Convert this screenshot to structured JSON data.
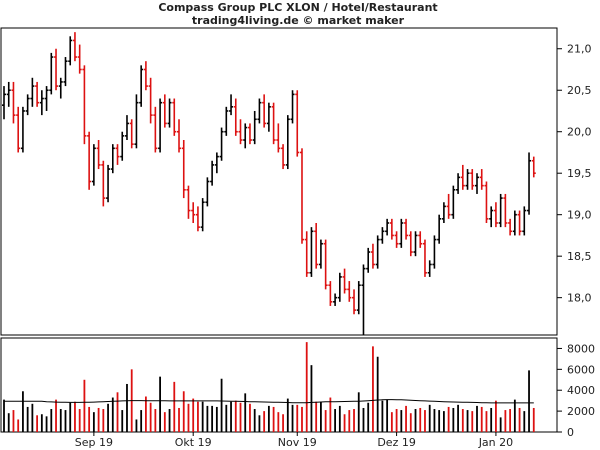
{
  "chart_data": {
    "title": "Compass Group PLC XLON / Hotel/Restaurant",
    "subtitle": "trading4living.de © market maker",
    "type": "ohlc",
    "colors": {
      "up": "#000000",
      "down": "#dd1111",
      "volume_avg": "#000000",
      "frame": "#000000"
    },
    "price_axis": {
      "ticks": [
        "18,0",
        "18,5",
        "19,0",
        "19,5",
        "20,0",
        "20,5",
        "21,0"
      ],
      "tick_values": [
        18.0,
        18.5,
        19.0,
        19.5,
        20.0,
        20.5,
        21.0
      ],
      "ylim": [
        17.55,
        21.25
      ]
    },
    "volume_axis": {
      "ticks": [
        "0",
        "2000",
        "4000",
        "6000",
        "8000"
      ],
      "tick_values": [
        0,
        2000,
        4000,
        6000,
        8000
      ],
      "ylim": [
        0,
        9000
      ]
    },
    "x_labels": [
      {
        "label": "Sep 19",
        "index": 19
      },
      {
        "label": "Okt 19",
        "index": 40
      },
      {
        "label": "Nov 19",
        "index": 62
      },
      {
        "label": "Dez 19",
        "index": 83
      },
      {
        "label": "Jan 20",
        "index": 104
      }
    ],
    "grid": false,
    "prices": [
      [
        20.32,
        20.55,
        20.15,
        20.45
      ],
      [
        20.45,
        20.6,
        20.3,
        20.5
      ],
      [
        20.5,
        20.6,
        20.1,
        20.2
      ],
      [
        20.2,
        20.3,
        19.75,
        19.8
      ],
      [
        19.8,
        20.3,
        19.75,
        20.25
      ],
      [
        20.25,
        20.45,
        20.2,
        20.4
      ],
      [
        20.4,
        20.65,
        20.3,
        20.55
      ],
      [
        20.55,
        20.6,
        20.3,
        20.35
      ],
      [
        20.35,
        20.5,
        20.2,
        20.4
      ],
      [
        20.4,
        20.55,
        20.25,
        20.5
      ],
      [
        20.5,
        20.95,
        20.45,
        20.9
      ],
      [
        20.9,
        21.0,
        20.5,
        20.55
      ],
      [
        20.55,
        20.65,
        20.4,
        20.6
      ],
      [
        20.6,
        20.9,
        20.55,
        20.85
      ],
      [
        20.85,
        21.15,
        20.8,
        21.1
      ],
      [
        21.1,
        21.2,
        20.85,
        20.9
      ],
      [
        20.9,
        21.05,
        20.7,
        20.75
      ],
      [
        20.75,
        20.8,
        19.85,
        19.95
      ],
      [
        19.95,
        20.0,
        19.3,
        19.4
      ],
      [
        19.4,
        19.85,
        19.35,
        19.8
      ],
      [
        19.8,
        19.9,
        19.55,
        19.6
      ],
      [
        19.6,
        19.65,
        19.1,
        19.2
      ],
      [
        19.2,
        19.6,
        19.15,
        19.55
      ],
      [
        19.55,
        19.85,
        19.5,
        19.8
      ],
      [
        19.8,
        19.85,
        19.6,
        19.7
      ],
      [
        19.7,
        20.0,
        19.65,
        19.95
      ],
      [
        19.95,
        20.2,
        19.9,
        20.1
      ],
      [
        20.1,
        20.15,
        19.8,
        19.85
      ],
      [
        19.85,
        20.45,
        19.8,
        20.35
      ],
      [
        20.35,
        20.8,
        20.3,
        20.75
      ],
      [
        20.75,
        20.85,
        20.5,
        20.55
      ],
      [
        20.55,
        20.65,
        20.1,
        20.2
      ],
      [
        20.2,
        20.3,
        19.75,
        19.8
      ],
      [
        19.8,
        20.4,
        19.75,
        20.35
      ],
      [
        20.35,
        20.45,
        20.05,
        20.1
      ],
      [
        20.1,
        20.4,
        20.05,
        20.35
      ],
      [
        20.35,
        20.4,
        19.95,
        20.0
      ],
      [
        20.0,
        20.15,
        19.75,
        19.8
      ],
      [
        19.8,
        19.9,
        19.2,
        19.3
      ],
      [
        19.3,
        19.35,
        18.95,
        19.05
      ],
      [
        19.05,
        19.15,
        18.9,
        19.0
      ],
      [
        19.0,
        19.1,
        18.8,
        18.85
      ],
      [
        18.85,
        19.2,
        18.8,
        19.15
      ],
      [
        19.15,
        19.45,
        19.1,
        19.4
      ],
      [
        19.4,
        19.65,
        19.35,
        19.6
      ],
      [
        19.6,
        19.75,
        19.5,
        19.7
      ],
      [
        19.7,
        20.05,
        19.65,
        20.0
      ],
      [
        20.0,
        20.3,
        19.95,
        20.25
      ],
      [
        20.25,
        20.45,
        20.2,
        20.3
      ],
      [
        20.3,
        20.4,
        19.95,
        20.0
      ],
      [
        20.0,
        20.15,
        19.85,
        19.9
      ],
      [
        19.9,
        20.1,
        19.8,
        20.05
      ],
      [
        20.05,
        20.1,
        19.85,
        19.9
      ],
      [
        19.9,
        20.25,
        19.85,
        20.15
      ],
      [
        20.15,
        20.4,
        20.1,
        20.35
      ],
      [
        20.35,
        20.45,
        20.05,
        20.1
      ],
      [
        20.1,
        20.35,
        20.0,
        20.3
      ],
      [
        20.3,
        20.35,
        19.85,
        19.9
      ],
      [
        19.9,
        20.1,
        19.75,
        19.8
      ],
      [
        19.8,
        19.85,
        19.55,
        19.6
      ],
      [
        19.6,
        20.2,
        19.55,
        20.15
      ],
      [
        20.15,
        20.5,
        20.1,
        20.45
      ],
      [
        20.45,
        20.5,
        19.7,
        19.75
      ],
      [
        19.75,
        19.8,
        18.65,
        18.7
      ],
      [
        18.7,
        18.8,
        18.25,
        18.3
      ],
      [
        18.3,
        18.85,
        18.25,
        18.8
      ],
      [
        18.8,
        18.9,
        18.35,
        18.4
      ],
      [
        18.4,
        18.7,
        18.35,
        18.65
      ],
      [
        18.65,
        18.7,
        18.1,
        18.15
      ],
      [
        18.15,
        18.2,
        17.9,
        17.95
      ],
      [
        17.95,
        18.05,
        17.9,
        18.0
      ],
      [
        18.0,
        18.3,
        17.95,
        18.25
      ],
      [
        18.25,
        18.35,
        18.05,
        18.1
      ],
      [
        18.1,
        18.2,
        17.95,
        18.0
      ],
      [
        18.0,
        18.1,
        17.8,
        17.85
      ],
      [
        17.85,
        18.2,
        17.8,
        18.15
      ],
      [
        18.15,
        18.4,
        17.55,
        18.35
      ],
      [
        18.35,
        18.6,
        18.3,
        18.55
      ],
      [
        18.55,
        18.65,
        18.35,
        18.4
      ],
      [
        18.4,
        18.75,
        18.35,
        18.7
      ],
      [
        18.7,
        18.85,
        18.65,
        18.8
      ],
      [
        18.8,
        18.95,
        18.75,
        18.9
      ],
      [
        18.9,
        18.95,
        18.7,
        18.75
      ],
      [
        18.75,
        18.8,
        18.6,
        18.65
      ],
      [
        18.65,
        18.95,
        18.6,
        18.9
      ],
      [
        18.9,
        18.95,
        18.7,
        18.75
      ],
      [
        18.75,
        18.8,
        18.5,
        18.55
      ],
      [
        18.55,
        18.8,
        18.5,
        18.75
      ],
      [
        18.75,
        18.8,
        18.6,
        18.65
      ],
      [
        18.65,
        18.7,
        18.25,
        18.3
      ],
      [
        18.3,
        18.45,
        18.25,
        18.4
      ],
      [
        18.4,
        18.75,
        18.35,
        18.7
      ],
      [
        18.7,
        19.0,
        18.65,
        18.95
      ],
      [
        18.95,
        19.15,
        18.9,
        19.1
      ],
      [
        19.1,
        19.25,
        18.95,
        19.0
      ],
      [
        19.0,
        19.35,
        18.95,
        19.3
      ],
      [
        19.3,
        19.5,
        19.25,
        19.45
      ],
      [
        19.45,
        19.6,
        19.3,
        19.35
      ],
      [
        19.35,
        19.55,
        19.3,
        19.5
      ],
      [
        19.5,
        19.55,
        19.3,
        19.35
      ],
      [
        19.35,
        19.5,
        19.25,
        19.45
      ],
      [
        19.45,
        19.55,
        19.3,
        19.35
      ],
      [
        19.35,
        19.4,
        18.9,
        18.95
      ],
      [
        18.95,
        19.1,
        18.85,
        19.05
      ],
      [
        19.05,
        19.15,
        18.85,
        18.9
      ],
      [
        18.9,
        19.25,
        18.85,
        19.2
      ],
      [
        19.2,
        19.25,
        18.85,
        18.9
      ],
      [
        18.9,
        18.95,
        18.75,
        18.8
      ],
      [
        18.8,
        19.05,
        18.75,
        19.0
      ],
      [
        19.0,
        19.05,
        18.75,
        18.8
      ],
      [
        18.8,
        19.1,
        18.75,
        19.05
      ],
      [
        19.05,
        19.75,
        19.0,
        19.65
      ],
      [
        19.65,
        19.7,
        19.45,
        19.5
      ]
    ],
    "volumes": [
      3100,
      1800,
      2100,
      1200,
      3900,
      2400,
      2700,
      1600,
      1700,
      1500,
      2200,
      3100,
      2200,
      2100,
      2800,
      2900,
      2200,
      5000,
      2400,
      1900,
      2300,
      2200,
      2700,
      3300,
      3800,
      2100,
      4600,
      6000,
      1200,
      2100,
      3400,
      2800,
      2200,
      5300,
      1900,
      2200,
      4800,
      2300,
      3900,
      2700,
      3200,
      2900,
      2900,
      2500,
      2500,
      2400,
      5100,
      2600,
      2900,
      3000,
      2800,
      3700,
      2700,
      2200,
      1600,
      2000,
      2500,
      2400,
      1900,
      1700,
      3200,
      2600,
      2600,
      2400,
      8600,
      6400,
      2900,
      2900,
      2100,
      3300,
      2200,
      2500,
      1700,
      2100,
      2200,
      3800,
      2300,
      2800,
      8200,
      7200,
      3000,
      3100,
      1900,
      2200,
      2100,
      2500,
      1800,
      2200,
      2300,
      2100,
      2600,
      2200,
      2100,
      2000,
      2400,
      2300,
      2600,
      2200,
      2100,
      2000,
      2500,
      2400,
      2000,
      2300,
      3000,
      1400,
      2100,
      2200,
      3100,
      2300,
      2000,
      5900,
      2300
    ],
    "volume_avg": [
      2950,
      2950,
      2950,
      2950,
      2950,
      2950,
      2950,
      2950,
      2950,
      2900,
      2880,
      2860,
      2850,
      2840,
      2830,
      2830,
      2830,
      2840,
      2850,
      2860,
      2880,
      2900,
      2920,
      2940,
      2960,
      2980,
      3000,
      3010,
      3010,
      3010,
      3000,
      3000,
      3000,
      3000,
      2990,
      2980,
      2980,
      2980,
      2980,
      2980,
      2980,
      2980,
      2980,
      2980,
      2980,
      2980,
      2970,
      2960,
      2950,
      2940,
      2930,
      2920,
      2900,
      2890,
      2880,
      2870,
      2860,
      2850,
      2840,
      2830,
      2820,
      2810,
      2800,
      2800,
      2810,
      2830,
      2850,
      2870,
      2890,
      2900,
      2900,
      2910,
      2920,
      2930,
      2940,
      2950,
      2970,
      3000,
      3030,
      3060,
      3080,
      3100,
      3100,
      3090,
      3080,
      3060,
      3040,
      3020,
      3000,
      2980,
      2960,
      2940,
      2920,
      2900,
      2880,
      2870,
      2860,
      2850,
      2840,
      2830,
      2820,
      2810,
      2800,
      2790,
      2790,
      2790,
      2790,
      2790,
      2790,
      2790,
      2790,
      2790,
      2790
    ]
  }
}
